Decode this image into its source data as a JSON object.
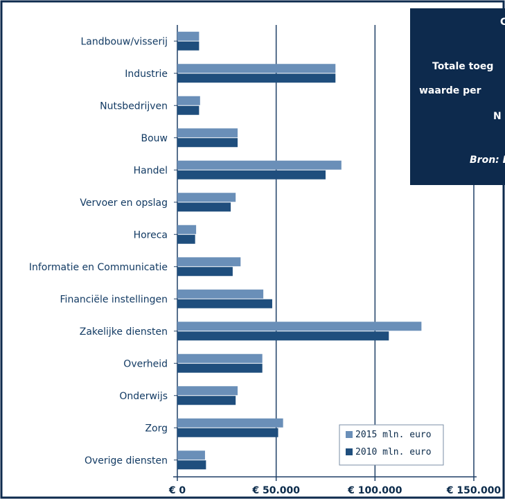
{
  "chart_data": {
    "type": "bar",
    "orientation": "horizontal",
    "categories": [
      "Landbouw/visserij",
      "Industrie",
      "Nutsbedrijven",
      "Bouw",
      "Handel",
      "Vervoer en opslag",
      "Horeca",
      "Informatie en Communicatie",
      "Financiële instellingen",
      "Zakelijke diensten",
      "Overheid",
      "Onderwijs",
      "Zorg",
      "Overige diensten"
    ],
    "series": [
      {
        "name": "2015 mln. euro",
        "color": "#6a8fb8",
        "values": [
          11000,
          80000,
          11500,
          30500,
          83000,
          29500,
          9500,
          32000,
          43500,
          123500,
          43000,
          30500,
          53500,
          14000
        ]
      },
      {
        "name": "2010 mln. euro",
        "color": "#1f4e7d",
        "values": [
          11000,
          80000,
          11000,
          30500,
          75000,
          27000,
          9000,
          28000,
          48000,
          107000,
          43000,
          29500,
          51000,
          14500
        ]
      }
    ],
    "xlim": [
      0,
      150000
    ],
    "xticks": [
      0,
      50000,
      100000,
      150000
    ],
    "xtick_labels": [
      "€ 0",
      "€ 50.000",
      "€ 100.000",
      "€ 150.000"
    ],
    "grid": "vertical",
    "legend_position": "bottom-right"
  },
  "info_box": {
    "lines": [
      "C",
      "Totale toeg",
      "waarde per",
      "N",
      "Bron: D"
    ]
  },
  "colors": {
    "frame": "#0d2a4d",
    "gridline": "#1e3f66",
    "info_box_bg": "#0d2a4d"
  }
}
